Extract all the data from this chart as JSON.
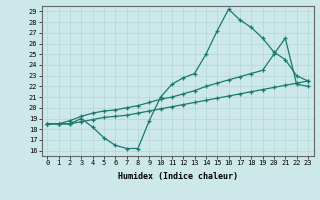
{
  "xlabel": "Humidex (Indice chaleur)",
  "background_color": "#cce8e8",
  "line_color": "#1a7a6e",
  "grid_color": "#b8d8d8",
  "xlim": [
    -0.5,
    23.5
  ],
  "ylim": [
    15.5,
    29.5
  ],
  "xticks": [
    0,
    1,
    2,
    3,
    4,
    5,
    6,
    7,
    8,
    9,
    10,
    11,
    12,
    13,
    14,
    15,
    16,
    17,
    18,
    19,
    20,
    21,
    22,
    23
  ],
  "yticks": [
    16,
    17,
    18,
    19,
    20,
    21,
    22,
    23,
    24,
    25,
    26,
    27,
    28,
    29
  ],
  "line1_x": [
    0,
    1,
    2,
    3,
    4,
    5,
    6,
    7,
    8,
    9,
    10,
    11,
    12,
    13,
    14,
    15,
    16,
    17,
    18,
    19,
    20,
    21,
    22,
    23
  ],
  "line1_y": [
    18.5,
    18.5,
    18.5,
    19.0,
    18.2,
    17.2,
    16.5,
    16.2,
    16.2,
    18.8,
    21.0,
    22.2,
    22.8,
    23.2,
    25.0,
    27.2,
    29.2,
    28.2,
    27.5,
    26.5,
    25.2,
    24.5,
    23.0,
    22.5
  ],
  "line2_x": [
    0,
    1,
    2,
    3,
    4,
    5,
    6,
    7,
    8,
    9,
    10,
    11,
    12,
    13,
    14,
    15,
    16,
    17,
    18,
    19,
    20,
    21,
    22,
    23
  ],
  "line2_y": [
    18.5,
    18.5,
    18.8,
    19.2,
    19.5,
    19.7,
    19.8,
    20.0,
    20.2,
    20.5,
    20.8,
    21.0,
    21.3,
    21.6,
    22.0,
    22.3,
    22.6,
    22.9,
    23.2,
    23.5,
    25.0,
    26.5,
    22.2,
    22.0
  ],
  "line3_x": [
    0,
    1,
    2,
    3,
    4,
    5,
    6,
    7,
    8,
    9,
    10,
    11,
    12,
    13,
    14,
    15,
    16,
    17,
    18,
    19,
    20,
    21,
    22,
    23
  ],
  "line3_y": [
    18.5,
    18.5,
    18.5,
    18.7,
    18.9,
    19.1,
    19.2,
    19.3,
    19.5,
    19.7,
    19.9,
    20.1,
    20.3,
    20.5,
    20.7,
    20.9,
    21.1,
    21.3,
    21.5,
    21.7,
    21.9,
    22.1,
    22.3,
    22.5
  ]
}
